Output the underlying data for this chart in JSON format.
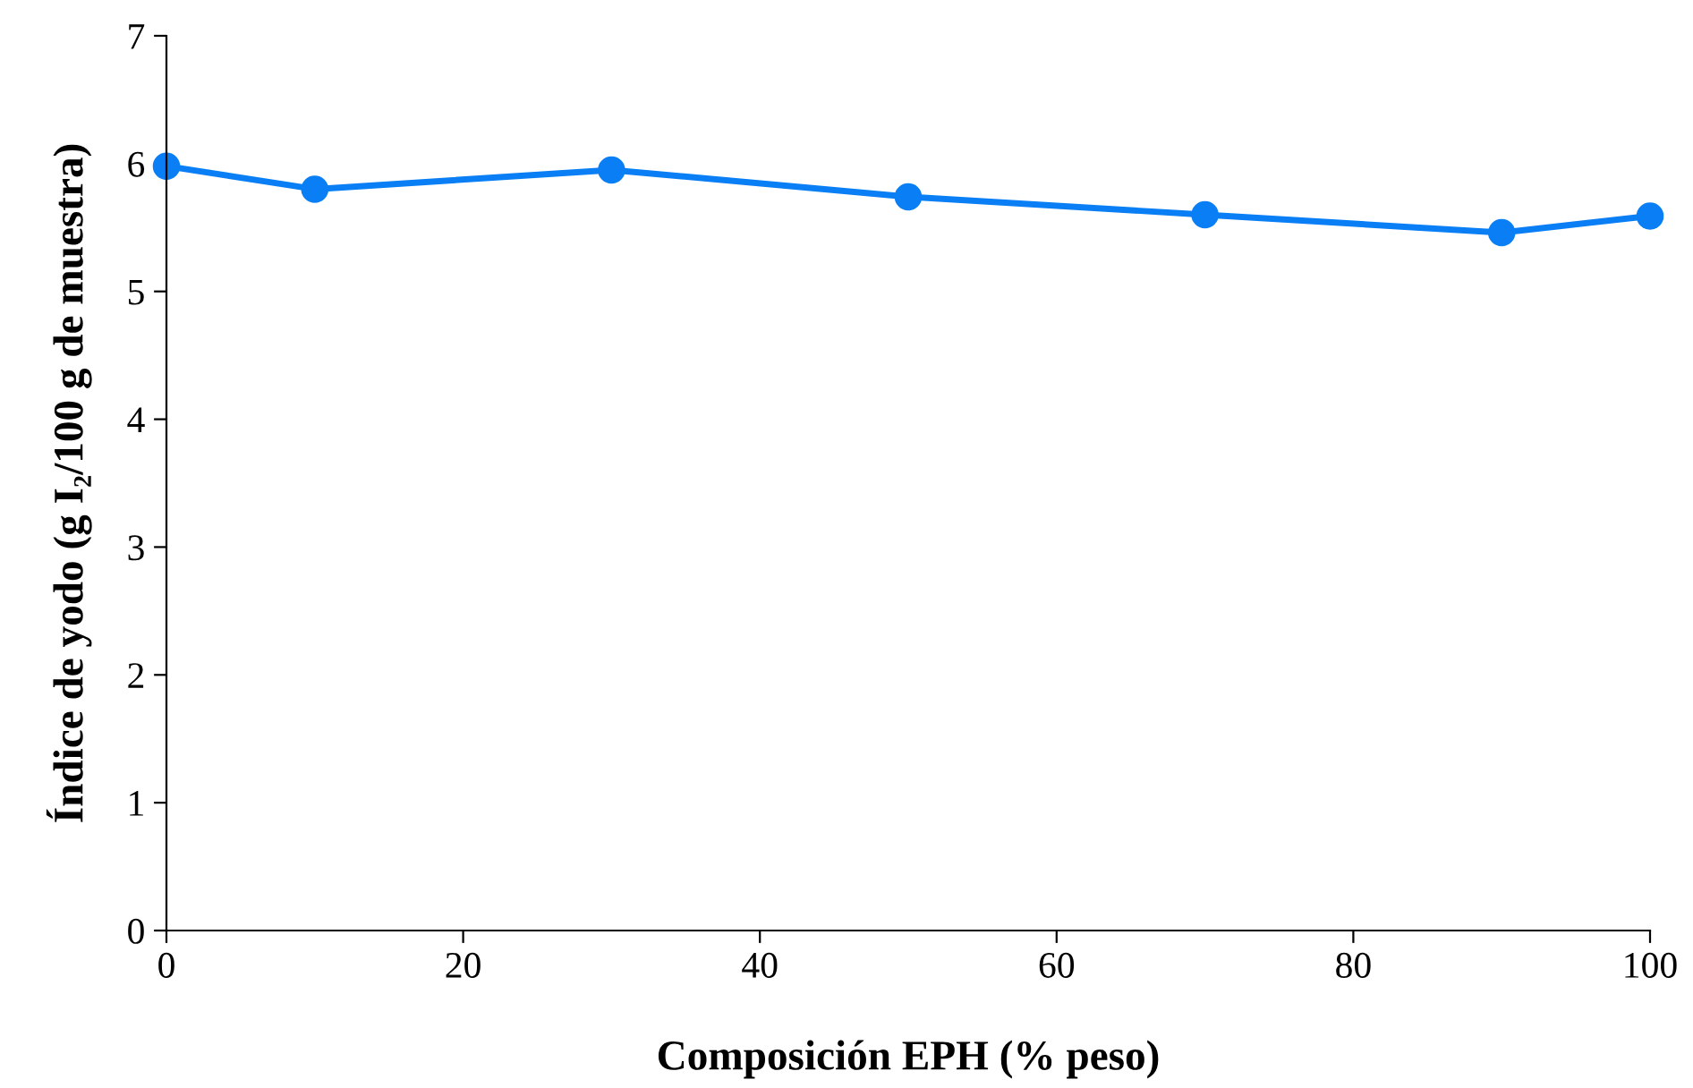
{
  "chart_data": {
    "type": "line",
    "xlabel": "Composición EPH (% peso)",
    "ylabel": "Índice de yodo (g I₂/100 g de muestra)",
    "x": [
      0,
      10,
      30,
      50,
      70,
      90,
      100
    ],
    "series": [
      {
        "color": "#0a7ff5",
        "values": [
          5.98,
          5.8,
          5.95,
          5.74,
          5.6,
          5.46,
          5.59
        ]
      }
    ],
    "xlim": [
      0,
      100
    ],
    "xticks": [
      0,
      20,
      40,
      60,
      80,
      100
    ],
    "ylim": [
      0,
      7
    ],
    "yticks": [
      0,
      1,
      2,
      3,
      4,
      5,
      6,
      7
    ],
    "marker": "circle",
    "line_style": "solid",
    "grid": false,
    "legend": false
  }
}
